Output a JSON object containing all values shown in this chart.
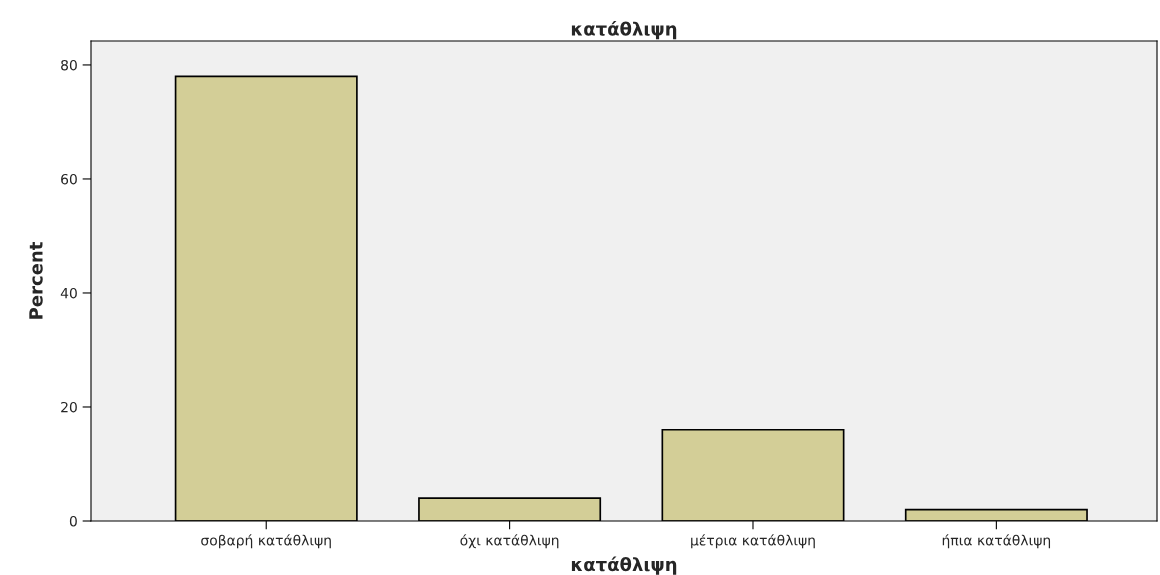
{
  "chart_data": {
    "type": "bar",
    "title": "κατάθλιψη",
    "xlabel": "κατάθλιψη",
    "ylabel": "Percent",
    "categories": [
      "σοβαρή κατάθλιψη",
      "όχι κατάθλιψη",
      "μέτρια κατάθλιψη",
      "ήπια κατάθλιψη"
    ],
    "values": [
      78,
      4,
      16,
      2
    ],
    "color": "#d3ce97",
    "ylim": [
      0,
      84.2
    ],
    "yticks": [
      0,
      20,
      40,
      60,
      80
    ],
    "grid": false,
    "legend": false
  }
}
